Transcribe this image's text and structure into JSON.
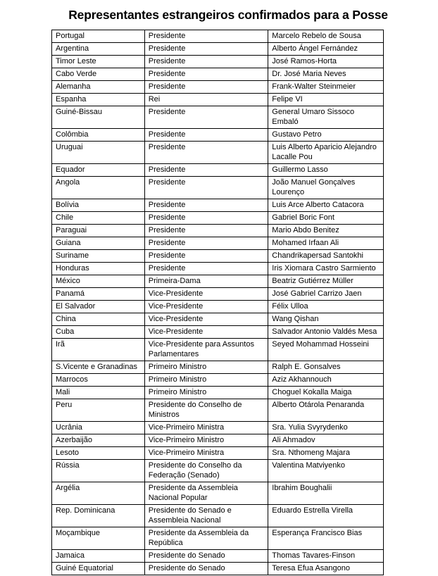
{
  "title": "Representantes estrangeiros confirmados para a Posse",
  "rows": [
    [
      "Portugal",
      "Presidente",
      "Marcelo Rebelo de Sousa"
    ],
    [
      "Argentina",
      "Presidente",
      "Alberto Ángel Fernández"
    ],
    [
      "Timor Leste",
      "Presidente",
      "José Ramos-Horta"
    ],
    [
      "Cabo Verde",
      "Presidente",
      "Dr. José Maria Neves"
    ],
    [
      "Alemanha",
      "Presidente",
      "Frank-Walter Steinmeier"
    ],
    [
      "Espanha",
      "Rei",
      "Felipe VI"
    ],
    [
      "Guiné-Bissau",
      "Presidente",
      "General Umaro Sissoco Embaló"
    ],
    [
      "Colômbia",
      "Presidente",
      "Gustavo Petro"
    ],
    [
      "Uruguai",
      "Presidente",
      "Luis Alberto Aparicio Alejandro Lacalle Pou"
    ],
    [
      "Equador",
      "Presidente",
      "Guillermo Lasso"
    ],
    [
      "Angola",
      "Presidente",
      "João Manuel Gonçalves Lourenço"
    ],
    [
      "Bolívia",
      "Presidente",
      "Luis Arce Alberto Catacora"
    ],
    [
      "Chile",
      "Presidente",
      "Gabriel Boric Font"
    ],
    [
      "Paraguai",
      "Presidente",
      "Mario Abdo Benitez"
    ],
    [
      "Guiana",
      "Presidente",
      "Mohamed Irfaan Ali"
    ],
    [
      "Suriname",
      "Presidente",
      "Chandrikapersad Santokhi"
    ],
    [
      "Honduras",
      "Presidente",
      "Iris Xiomara Castro Sarmiento"
    ],
    [
      "México",
      "Primeira-Dama",
      "Beatriz Gutiérrez Müller"
    ],
    [
      "Panamá",
      "Vice-Presidente",
      "José Gabriel Carrizo Jaen"
    ],
    [
      "El Salvador",
      "Vice-Presidente",
      "Félix Ulloa"
    ],
    [
      "China",
      "Vice-Presidente",
      "Wang Qishan"
    ],
    [
      "Cuba",
      "Vice-Presidente",
      "Salvador Antonio Valdés Mesa"
    ],
    [
      "Irã",
      "Vice-Presidente para Assuntos Parlamentares",
      "Seyed Mohammad Hosseini"
    ],
    [
      "S.Vicente e Granadinas",
      "Primeiro Ministro",
      "Ralph E. Gonsalves"
    ],
    [
      "Marrocos",
      "Primeiro Ministro",
      "Aziz Akhannouch"
    ],
    [
      "Mali",
      "Primeiro Ministro",
      "Choguel Kokalla Maiga"
    ],
    [
      "Peru",
      "Presidente do Conselho de Ministros",
      "Alberto Otárola Penaranda"
    ],
    [
      "Ucrânia",
      "Vice-Primeiro Ministra",
      "Sra. Yulia Svyrydenko"
    ],
    [
      "Azerbaijão",
      "Vice-Primeiro Ministro",
      "Ali Ahmadov"
    ],
    [
      "Lesoto",
      "Vice-Primeiro Ministra",
      "Sra. Nthomeng Majara"
    ],
    [
      "Rússia",
      "Presidente do Conselho da Federação (Senado)",
      "Valentina Matviyenko"
    ],
    [
      "Argélia",
      "Presidente da Assembleia Nacional Popular",
      "Ibrahim Boughalii"
    ],
    [
      "Rep. Dominicana",
      "Presidente do Senado e Assembleia Nacional",
      "Eduardo Estrella Virella"
    ],
    [
      "Moçambique",
      "Presidente da Assembleia da República",
      "Esperança Francisco Bias"
    ],
    [
      "Jamaica",
      "Presidente do Senado",
      "Thomas Tavares-Finson"
    ],
    [
      "Guiné Equatorial",
      "Presidente do Senado",
      "Teresa Efua Asangono"
    ]
  ]
}
